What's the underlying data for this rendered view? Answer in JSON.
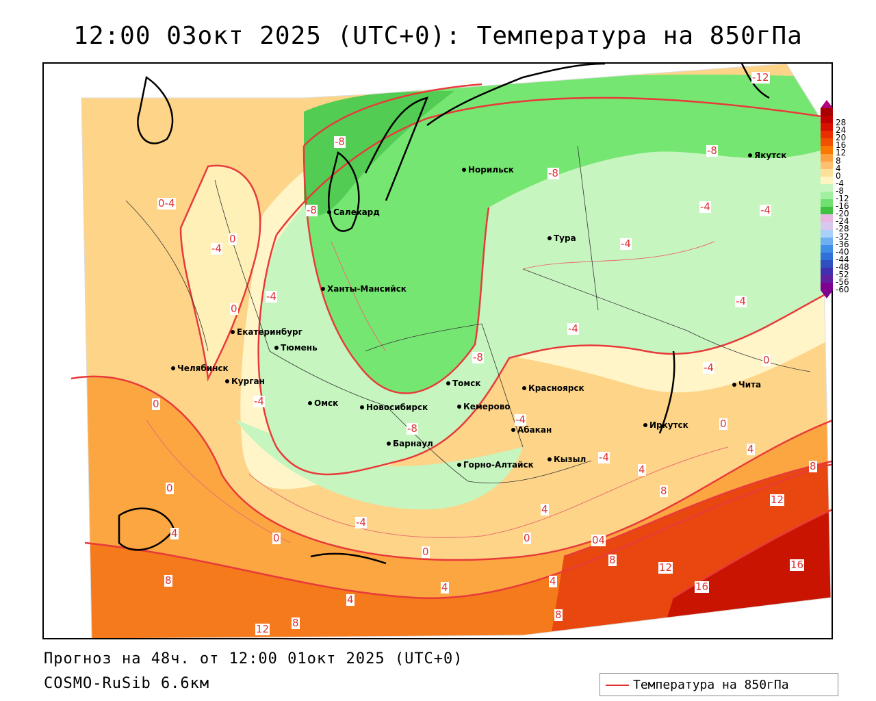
{
  "title": "12:00 03окт 2025 (UTC+0): Температура на 850гПа",
  "footer": {
    "forecast": "Прогноз на 48ч. от 12:00 01окт 2025 (UTC+0)",
    "model": "COSMO-RuSib 6.6км"
  },
  "legend": {
    "label": "Температура на 850гПа",
    "line_color": "#e03030"
  },
  "colorbar": {
    "ticks": [
      "28",
      "24",
      "20",
      "16",
      "12",
      "8",
      "4",
      "0",
      "-4",
      "-8",
      "-12",
      "-16",
      "-20",
      "-24",
      "-28",
      "-32",
      "-36",
      "-40",
      "-44",
      "-48",
      "-52",
      "-56",
      "-60"
    ],
    "colors": [
      "#a80000",
      "#c00000",
      "#d81000",
      "#e83000",
      "#f05000",
      "#f87800",
      "#fca040",
      "#fdc070",
      "#fde09a",
      "#fff5c0",
      "#c8f5c0",
      "#a0f0a0",
      "#70e070",
      "#40c040",
      "#e8b8e0",
      "#d8c8f0",
      "#a8d0f8",
      "#70b0f0",
      "#4090e8",
      "#3070d8",
      "#3050c0",
      "#4030b0",
      "#6020a0",
      "#800090"
    ]
  },
  "cities": [
    {
      "name": "Норильск"
    },
    {
      "name": "Якутск"
    },
    {
      "name": "Салехард"
    },
    {
      "name": "Тура"
    },
    {
      "name": "Ханты-Мансийск"
    },
    {
      "name": "Екатеринбург"
    },
    {
      "name": "Тюмень"
    },
    {
      "name": "Челябинск"
    },
    {
      "name": "Курган"
    },
    {
      "name": "Омск"
    },
    {
      "name": "Томск"
    },
    {
      "name": "Красноярск"
    },
    {
      "name": "Новосибирск"
    },
    {
      "name": "Кемерово"
    },
    {
      "name": "Абакан"
    },
    {
      "name": "Иркутск"
    },
    {
      "name": "Чита"
    },
    {
      "name": "Барнаул"
    },
    {
      "name": "Кызыл"
    },
    {
      "name": "Горно-Алтайск"
    }
  ],
  "contour_labels": [
    "-12",
    "-8",
    "-8",
    "-8",
    "-8",
    "-4",
    "-4",
    "-4",
    "-4",
    "-4",
    "-4",
    "-4",
    "-4",
    "-4",
    "-4",
    "-4",
    "-8",
    "-8",
    "0",
    "0",
    "0",
    "0",
    "0",
    "0",
    "0",
    "0",
    "0",
    "4",
    "4",
    "4",
    "4",
    "4",
    "4",
    "4",
    "8",
    "8",
    "8",
    "8",
    "8",
    "8",
    "12",
    "12",
    "12",
    "16",
    "16",
    "04",
    "-4",
    "0-4"
  ]
}
